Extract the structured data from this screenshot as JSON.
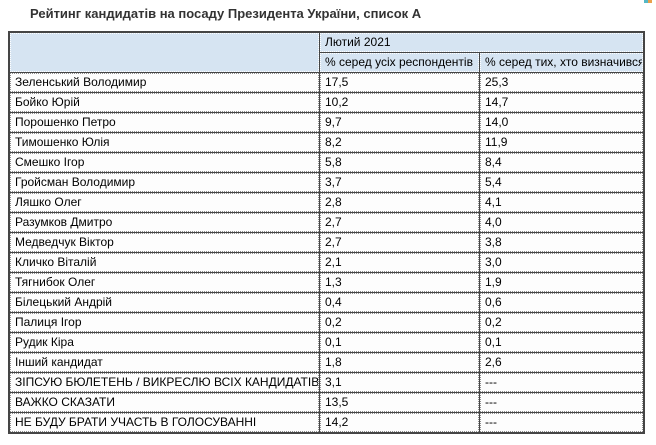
{
  "page": {
    "title": "Рейтинг кандидатів на посаду Президента України, список А"
  },
  "table": {
    "period_header": "Лютий 2021",
    "columns": {
      "all_respondents": "% серед усіх респондентів",
      "decided": "% серед тих, хто визначився"
    },
    "rows": [
      {
        "name": "Зеленський Володимир",
        "pct_all": "17,5",
        "pct_decided": "25,3"
      },
      {
        "name": "Бойко Юрій",
        "pct_all": "10,2",
        "pct_decided": "14,7"
      },
      {
        "name": "Порошенко Петро",
        "pct_all": "9,7",
        "pct_decided": "14,0"
      },
      {
        "name": "Тимошенко Юлія",
        "pct_all": "8,2",
        "pct_decided": "11,9"
      },
      {
        "name": "Смешко Ігор",
        "pct_all": "5,8",
        "pct_decided": "8,4"
      },
      {
        "name": "Гройсман Володимир",
        "pct_all": "3,7",
        "pct_decided": "5,4"
      },
      {
        "name": "Ляшко Олег",
        "pct_all": "2,8",
        "pct_decided": "4,1"
      },
      {
        "name": "Разумков Дмитро",
        "pct_all": "2,7",
        "pct_decided": "4,0"
      },
      {
        "name": "Медведчук Віктор",
        "pct_all": "2,7",
        "pct_decided": "3,8"
      },
      {
        "name": "Кличко Віталій",
        "pct_all": "2,1",
        "pct_decided": "3,0"
      },
      {
        "name": "Тягнибок Олег",
        "pct_all": "1,3",
        "pct_decided": "1,9"
      },
      {
        "name": "Білецький Андрій",
        "pct_all": "0,4",
        "pct_decided": "0,6"
      },
      {
        "name": "Палиця Ігор",
        "pct_all": "0,2",
        "pct_decided": "0,2"
      },
      {
        "name": "Рудик Кіра",
        "pct_all": "0,1",
        "pct_decided": "0,1"
      },
      {
        "name": "Інший кандидат",
        "pct_all": "1,8",
        "pct_decided": "2,6"
      },
      {
        "name": "ЗІПСУЮ БЮЛЕТЕНЬ / ВИКРЕСЛЮ ВСІХ КАНДИДАТІВ",
        "pct_all": "3,1",
        "pct_decided": "---"
      },
      {
        "name": "ВАЖКО СКАЗАТИ",
        "pct_all": "13,5",
        "pct_decided": "---"
      },
      {
        "name": "НЕ БУДУ БРАТИ УЧАСТЬ В ГОЛОСУВАННІ",
        "pct_all": "14,2",
        "pct_decided": "---"
      }
    ]
  },
  "colors": {
    "header_bg": "#d6e4f2",
    "grid_dark": "#454545",
    "cell_border_dotted": "#8f8f8f",
    "title_text": "#333333",
    "edge_artifact": [
      "#54b8c6",
      "#e9a04b"
    ]
  }
}
